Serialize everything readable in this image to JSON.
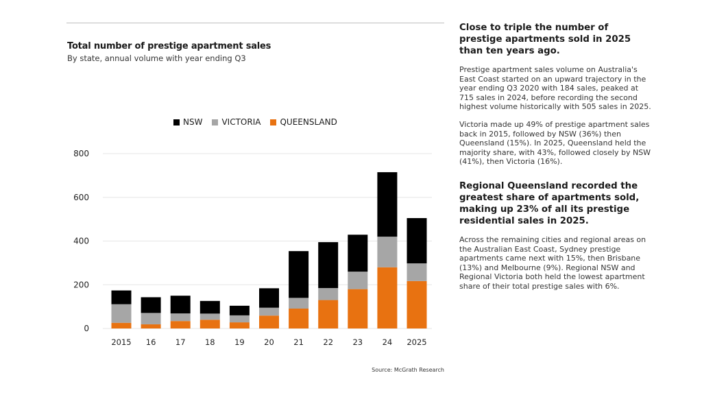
{
  "chart_data": {
    "type": "bar",
    "stacked": true,
    "title": "Total number of prestige apartment sales",
    "subtitle": "By state, annual volume with year ending Q3",
    "categories": [
      "2015",
      "16",
      "17",
      "18",
      "19",
      "20",
      "21",
      "22",
      "23",
      "24",
      "2025"
    ],
    "series": [
      {
        "name": "QUEENSLAND",
        "color": "#e87211",
        "values": [
          26,
          19,
          34,
          40,
          28,
          59,
          91,
          130,
          180,
          280,
          217
        ]
      },
      {
        "name": "VICTORIA",
        "color": "#a6a6a6",
        "values": [
          85,
          52,
          35,
          28,
          32,
          36,
          49,
          55,
          80,
          140,
          81
        ]
      },
      {
        "name": "NSW",
        "color": "#000000",
        "values": [
          63,
          72,
          81,
          58,
          44,
          89,
          214,
          210,
          169,
          295,
          207
        ]
      }
    ],
    "legend_order": [
      "NSW",
      "VICTORIA",
      "QUEENSLAND"
    ],
    "yticks": [
      0,
      200,
      400,
      600,
      800
    ],
    "ylim": [
      0,
      800
    ],
    "grid": true,
    "legend_position": "top",
    "source": "Source: McGrath Research"
  },
  "commentary": {
    "heading1": "Close to triple the number of prestige apartments sold in 2025 than ten years ago.",
    "para1": "Prestige apartment sales volume on Australia's East Coast started on an upward trajectory in the year ending Q3 2020 with 184 sales, peaked at 715 sales in 2024, before recording the second highest volume historically with 505 sales in 2025.",
    "para2": "Victoria made up 49% of prestige apartment sales back in 2015, followed by NSW (36%) then Queensland (15%). In 2025, Queensland held the majority share, with 43%, followed closely by NSW (41%), then Victoria (16%).",
    "heading2": "Regional Queensland recorded the greatest share of apartments sold, making up 23% of all its prestige residential sales in 2025.",
    "para3": "Across the remaining cities and regional areas on the Australian East Coast, Sydney prestige apartments came next with 15%, then Brisbane (13%) and Melbourne (9%). Regional NSW and Regional Victoria both held the lowest apartment share of their total prestige sales with 6%."
  }
}
